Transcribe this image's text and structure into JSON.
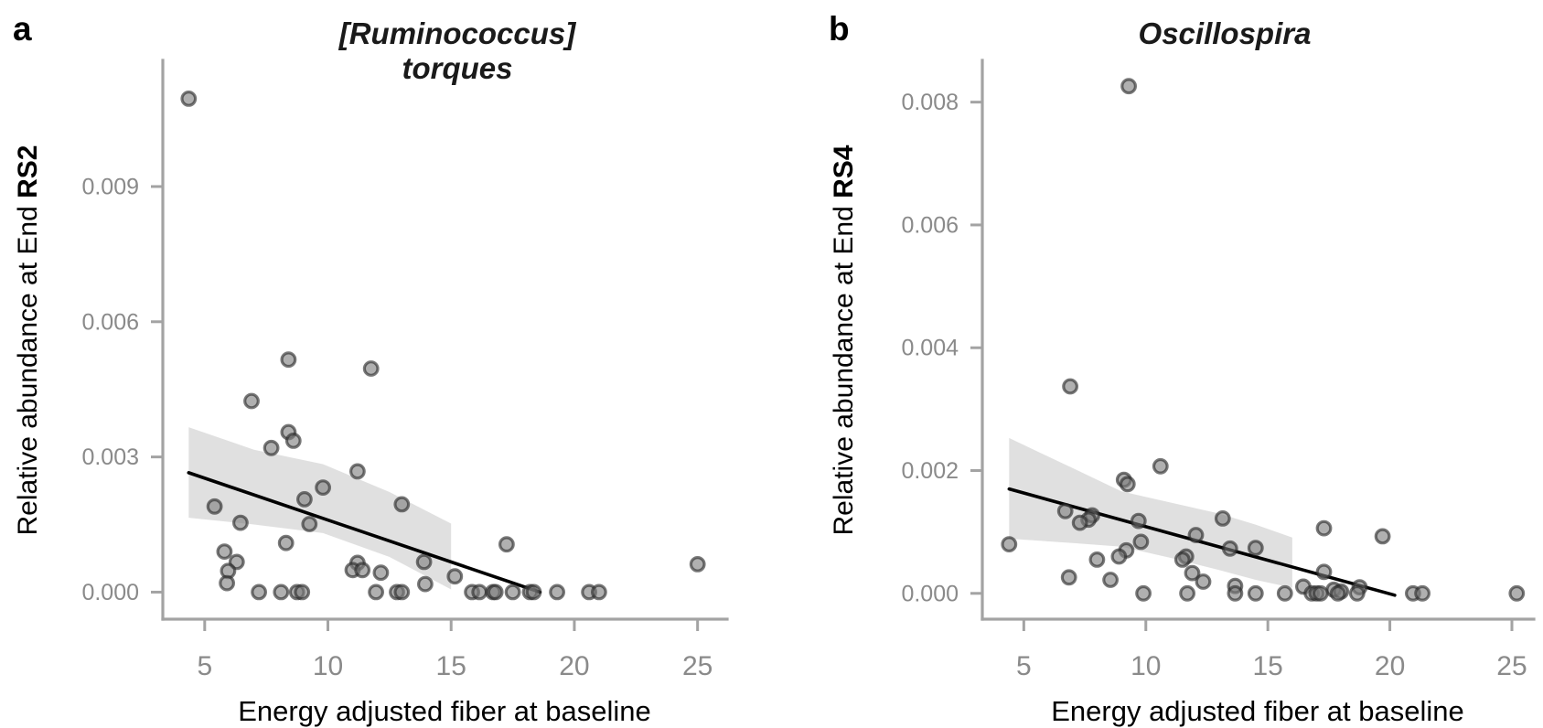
{
  "colors": {
    "background": "#ffffff",
    "axis_line": "#a3a3a3",
    "tick_mark": "#a3a3a3",
    "tick_label": "#8a8a8a",
    "axis_title": "#000000",
    "panel_title": "#1a1a1a",
    "point_fill": "rgba(124,124,124,0.60)",
    "point_stroke": "rgba(38,38,38,0.62)",
    "confidence_band": "rgba(0,0,0,0.12)",
    "trend_line": "#000000"
  },
  "chart_data": [
    {
      "type": "scatter",
      "panel_label": "a",
      "title": "[Ruminococcus] torques",
      "title_lines": [
        "[Ruminococcus]",
        "torques"
      ],
      "xlabel": "Energy adjusted fiber at baseline",
      "ylabel": "Relative abundance at End RS2",
      "ylabel_regular": "Relative abundance at End ",
      "ylabel_bold": "RS2",
      "xlim": [
        3.3,
        26.2
      ],
      "ylim": [
        -0.0006,
        0.0118
      ],
      "x_ticks": [
        5,
        10,
        15,
        20,
        25
      ],
      "x_tick_labels": [
        "5",
        "10",
        "15",
        "20",
        "25"
      ],
      "y_ticks": [
        0,
        0.003,
        0.006,
        0.009
      ],
      "y_tick_labels": [
        "0.000",
        "0.003",
        "0.006",
        "0.009"
      ],
      "grid": false,
      "legend": "none",
      "points": [
        [
          4.35,
          0.01095
        ],
        [
          8.4,
          0.00516
        ],
        [
          11.75,
          0.00496
        ],
        [
          6.9,
          0.00424
        ],
        [
          8.4,
          0.00355
        ],
        [
          8.6,
          0.00336
        ],
        [
          7.7,
          0.0032
        ],
        [
          11.2,
          0.00268
        ],
        [
          9.8,
          0.00232
        ],
        [
          9.05,
          0.00206
        ],
        [
          13.0,
          0.00195
        ],
        [
          5.4,
          0.0019
        ],
        [
          6.45,
          0.00154
        ],
        [
          9.25,
          0.00151
        ],
        [
          8.3,
          0.00109
        ],
        [
          17.25,
          0.00106
        ],
        [
          5.8,
          0.0009
        ],
        [
          6.3,
          0.00067
        ],
        [
          13.9,
          0.00067
        ],
        [
          11.2,
          0.00065
        ],
        [
          25.0,
          0.00062
        ],
        [
          11.0,
          0.00049
        ],
        [
          11.4,
          0.00049
        ],
        [
          5.95,
          0.00047
        ],
        [
          12.15,
          0.00043
        ],
        [
          15.15,
          0.00035
        ],
        [
          5.9,
          0.0002
        ],
        [
          13.95,
          0.00018
        ],
        [
          7.2,
          0.0
        ],
        [
          8.1,
          0.0
        ],
        [
          8.75,
          0.0
        ],
        [
          8.95,
          0.0
        ],
        [
          11.95,
          0.0
        ],
        [
          12.8,
          0.0
        ],
        [
          13.0,
          0.0
        ],
        [
          15.85,
          0.0
        ],
        [
          16.15,
          0.0
        ],
        [
          16.7,
          0.0
        ],
        [
          16.8,
          0.0
        ],
        [
          17.5,
          0.0
        ],
        [
          18.2,
          0.0
        ],
        [
          18.35,
          0.0
        ],
        [
          19.3,
          0.0
        ],
        [
          20.6,
          0.0
        ],
        [
          21.0,
          0.0
        ]
      ],
      "trend_line": [
        [
          4.35,
          0.00265
        ],
        [
          18.6,
          0.0
        ]
      ],
      "confidence_band": {
        "upper": [
          [
            4.35,
            0.00366
          ],
          [
            7.0,
            0.00316
          ],
          [
            9.8,
            0.00284
          ],
          [
            12.5,
            0.00222
          ],
          [
            15.0,
            0.00152
          ]
        ],
        "lower": [
          [
            4.35,
            0.00165
          ],
          [
            7.0,
            0.0015
          ],
          [
            9.8,
            0.00131
          ],
          [
            12.5,
            0.00078
          ],
          [
            15.0,
            6e-05
          ]
        ]
      }
    },
    {
      "type": "scatter",
      "panel_label": "b",
      "title": "Oscillospira",
      "title_lines": [
        "Oscillospira"
      ],
      "xlabel": "Energy adjusted fiber at baseline",
      "ylabel": "Relative abundance at End RS4",
      "ylabel_regular": "Relative abundance at End ",
      "ylabel_bold": "RS4",
      "xlim": [
        3.3,
        25.9
      ],
      "ylim": [
        -0.00042,
        0.00868
      ],
      "x_ticks": [
        5,
        10,
        15,
        20,
        25
      ],
      "x_tick_labels": [
        "5",
        "10",
        "15",
        "20",
        "25"
      ],
      "y_ticks": [
        0,
        0.002,
        0.004,
        0.006,
        0.008
      ],
      "y_tick_labels": [
        "0.000",
        "0.002",
        "0.004",
        "0.006",
        "0.008"
      ],
      "grid": false,
      "legend": "none",
      "points": [
        [
          9.3,
          0.00826
        ],
        [
          6.9,
          0.00337
        ],
        [
          10.6,
          0.00207
        ],
        [
          9.1,
          0.00185
        ],
        [
          9.25,
          0.00178
        ],
        [
          6.7,
          0.00134
        ],
        [
          13.15,
          0.00122
        ],
        [
          7.8,
          0.00127
        ],
        [
          7.65,
          0.0012
        ],
        [
          9.7,
          0.00118
        ],
        [
          7.3,
          0.00115
        ],
        [
          17.3,
          0.00106
        ],
        [
          12.05,
          0.00095
        ],
        [
          19.7,
          0.00093
        ],
        [
          9.8,
          0.00084
        ],
        [
          4.4,
          0.0008
        ],
        [
          14.5,
          0.00074
        ],
        [
          13.45,
          0.00073
        ],
        [
          9.2,
          0.0007
        ],
        [
          8.9,
          0.0006
        ],
        [
          11.65,
          0.0006
        ],
        [
          8.0,
          0.00055
        ],
        [
          11.5,
          0.00055
        ],
        [
          17.3,
          0.00035
        ],
        [
          11.9,
          0.00033
        ],
        [
          6.85,
          0.00026
        ],
        [
          8.55,
          0.00022
        ],
        [
          12.35,
          0.00019
        ],
        [
          13.66,
          0.00012
        ],
        [
          16.45,
          0.00011
        ],
        [
          18.76,
          0.0001
        ],
        [
          17.7,
          6e-05
        ],
        [
          18.0,
          3e-05
        ],
        [
          9.9,
          0.0
        ],
        [
          11.7,
          0.0
        ],
        [
          13.66,
          0.0
        ],
        [
          14.5,
          0.0
        ],
        [
          15.7,
          0.0
        ],
        [
          16.8,
          0.0
        ],
        [
          17.0,
          0.0
        ],
        [
          17.16,
          0.0
        ],
        [
          17.87,
          0.0
        ],
        [
          18.66,
          0.0
        ],
        [
          20.95,
          0.0
        ],
        [
          21.33,
          0.0
        ],
        [
          25.2,
          0.0
        ]
      ],
      "trend_line": [
        [
          4.4,
          0.0017
        ],
        [
          20.2,
          -3e-05
        ]
      ],
      "confidence_band": {
        "upper": [
          [
            4.4,
            0.00253
          ],
          [
            7.0,
            0.00204
          ],
          [
            9.0,
            0.00166
          ],
          [
            11.0,
            0.00148
          ],
          [
            13.0,
            0.0013
          ],
          [
            14.5,
            0.00112
          ],
          [
            16.0,
            0.00091
          ]
        ],
        "lower": [
          [
            4.4,
            0.00089
          ],
          [
            7.0,
            0.00082
          ],
          [
            9.0,
            0.00076
          ],
          [
            11.0,
            0.00058
          ],
          [
            13.0,
            0.00038
          ],
          [
            14.5,
            0.00022
          ],
          [
            16.0,
            9e-05
          ]
        ]
      }
    }
  ]
}
